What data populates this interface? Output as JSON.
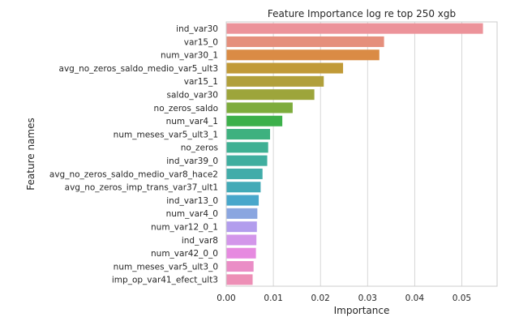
{
  "chart_data": {
    "type": "bar",
    "orientation": "horizontal",
    "title": "Feature Importance log re top 250 xgb",
    "xlabel": "Importance",
    "ylabel": "Feature names",
    "xlim": [
      0,
      0.0575
    ],
    "xticks": [
      "0.00",
      "0.01",
      "0.02",
      "0.03",
      "0.04",
      "0.05"
    ],
    "xtick_values": [
      0,
      0.01,
      0.02,
      0.03,
      0.04,
      0.05
    ],
    "grid": "vertical",
    "categories": [
      "ind_var30",
      "var15_0",
      "num_var30_1",
      "avg_no_zeros_saldo_medio_var5_ult3",
      "var15_1",
      "saldo_var30",
      "no_zeros_saldo",
      "num_var4_1",
      "num_meses_var5_ult3_1",
      "no_zeros",
      "ind_var39_0",
      "avg_no_zeros_saldo_medio_var8_hace2",
      "avg_no_zeros_imp_trans_var37_ult1",
      "ind_var13_0",
      "num_var4_0",
      "num_var12_0_1",
      "ind_var8",
      "num_var42_0_0",
      "num_meses_var5_ult3_0",
      "imp_op_var41_efect_ult3"
    ],
    "values": [
      0.0545,
      0.0335,
      0.0325,
      0.0248,
      0.0207,
      0.0187,
      0.0141,
      0.0119,
      0.0093,
      0.0089,
      0.0087,
      0.0077,
      0.0073,
      0.0069,
      0.0066,
      0.0065,
      0.0064,
      0.0063,
      0.0058,
      0.0056
    ],
    "colors": [
      "#ec939a",
      "#e58f7c",
      "#da8b45",
      "#c19a37",
      "#b1a03b",
      "#9da53b",
      "#7eac3c",
      "#3cb04a",
      "#3eb17f",
      "#3fb093",
      "#3fae9f",
      "#41aca9",
      "#43aab7",
      "#48a7cb",
      "#8aa6e0",
      "#b29ded",
      "#d396ea",
      "#e68ae0",
      "#ea8dc6",
      "#ed8fb6"
    ]
  }
}
